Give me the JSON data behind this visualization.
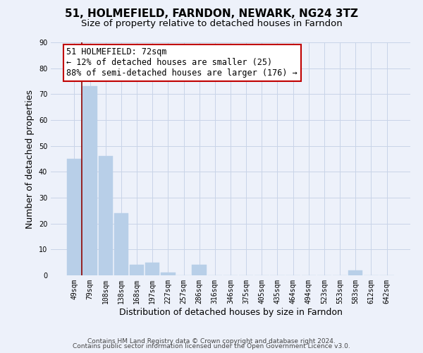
{
  "title": "51, HOLMEFIELD, FARNDON, NEWARK, NG24 3TZ",
  "subtitle": "Size of property relative to detached houses in Farndon",
  "xlabel": "Distribution of detached houses by size in Farndon",
  "ylabel": "Number of detached properties",
  "footer_line1": "Contains HM Land Registry data © Crown copyright and database right 2024.",
  "footer_line2": "Contains public sector information licensed under the Open Government Licence v3.0.",
  "bin_labels": [
    "49sqm",
    "79sqm",
    "108sqm",
    "138sqm",
    "168sqm",
    "197sqm",
    "227sqm",
    "257sqm",
    "286sqm",
    "316sqm",
    "346sqm",
    "375sqm",
    "405sqm",
    "435sqm",
    "464sqm",
    "494sqm",
    "523sqm",
    "553sqm",
    "583sqm",
    "612sqm",
    "642sqm"
  ],
  "bar_heights": [
    45,
    73,
    46,
    24,
    4,
    5,
    1,
    0,
    4,
    0,
    0,
    0,
    0,
    0,
    0,
    0,
    0,
    0,
    2,
    0,
    0
  ],
  "bar_color": "#b8cfe8",
  "bar_edge_color": "#b8cfe8",
  "highlight_line_color": "#8b0000",
  "annotation_line1": "51 HOLMEFIELD: 72sqm",
  "annotation_line2": "← 12% of detached houses are smaller (25)",
  "annotation_line3": "88% of semi-detached houses are larger (176) →",
  "annotation_box_edge_color": "#c00000",
  "annotation_box_facecolor": "white",
  "ylim": [
    0,
    90
  ],
  "yticks": [
    0,
    10,
    20,
    30,
    40,
    50,
    60,
    70,
    80,
    90
  ],
  "grid_color": "#c8d4e8",
  "bg_color": "#edf1fa",
  "title_fontsize": 11,
  "subtitle_fontsize": 9.5,
  "axis_label_fontsize": 9,
  "tick_fontsize": 7,
  "annotation_fontsize": 8.5,
  "footer_fontsize": 6.5
}
